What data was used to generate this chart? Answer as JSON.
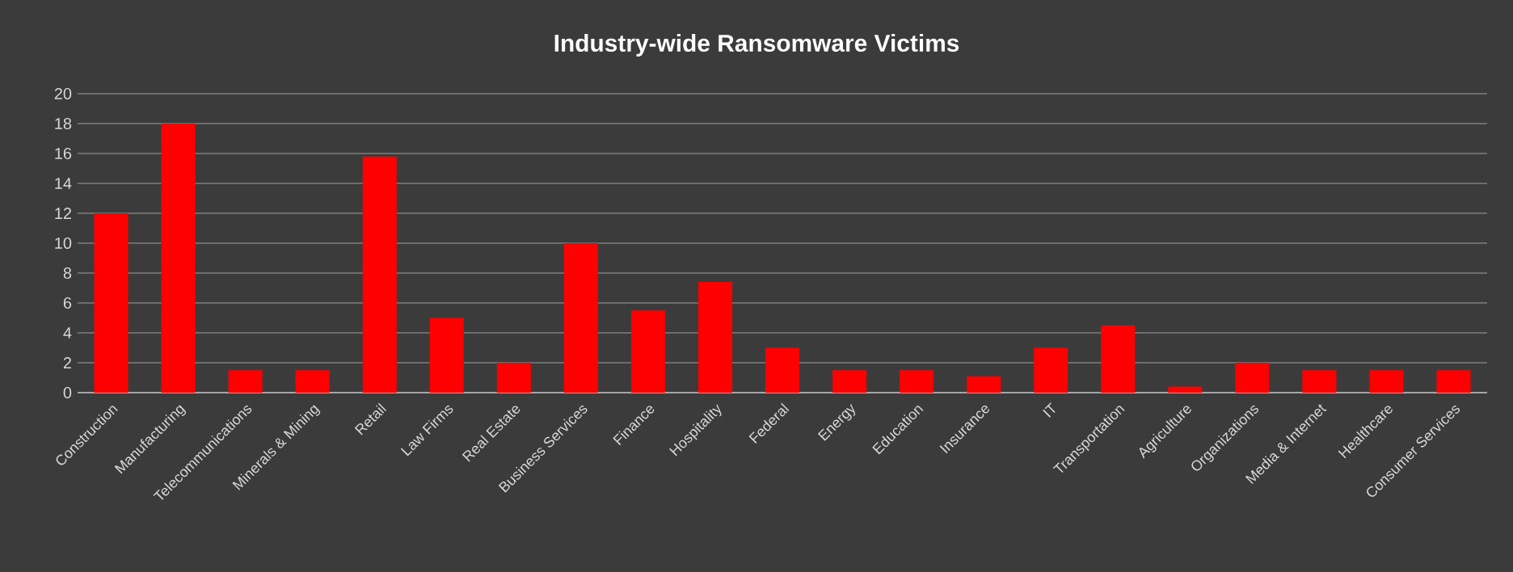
{
  "chart_data": {
    "type": "bar",
    "title": "Industry-wide Ransomware Victims",
    "categories": [
      "Construction",
      "Manufacturing",
      "Telecommunications",
      "Minerals & Mining",
      "Retail",
      "Law Firms",
      "Real Estate",
      "Business Services",
      "Finance",
      "Hospitality",
      "Federal",
      "Energy",
      "Education",
      "Insurance",
      "IT",
      "Transportation",
      "Agriculture",
      "Organizations",
      "Media & Internet",
      "Healthcare",
      "Consumer Services"
    ],
    "values": [
      12,
      18,
      1.5,
      1.5,
      15.8,
      5,
      2,
      10,
      5.5,
      7.4,
      3,
      1.5,
      1.5,
      1.1,
      3,
      4.5,
      0.4,
      2,
      1.5,
      1.5,
      1.5
    ],
    "color": "#ff0000",
    "ylim": [
      0,
      20
    ],
    "yticks": [
      0,
      2,
      4,
      6,
      8,
      10,
      12,
      14,
      16,
      18,
      20
    ],
    "grid": "y"
  }
}
